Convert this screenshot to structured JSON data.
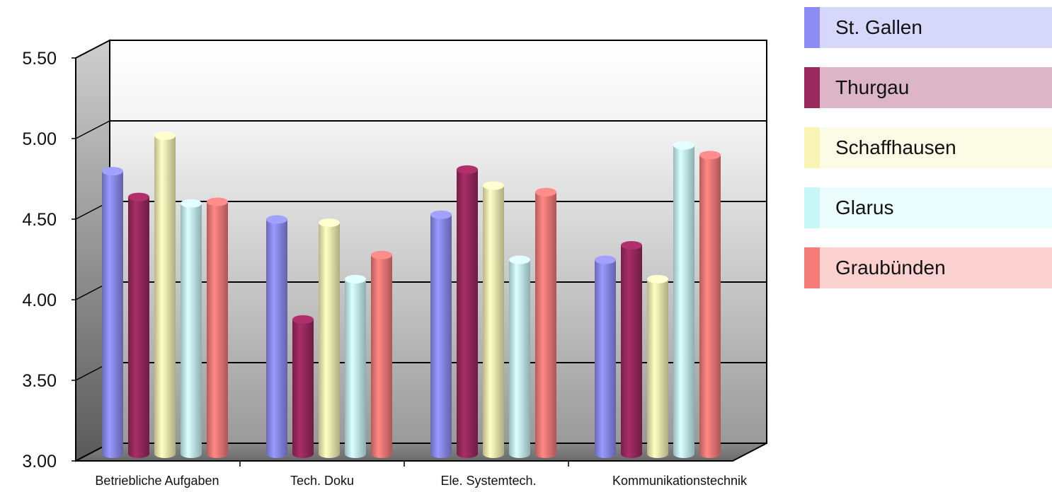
{
  "chart_data": {
    "type": "bar",
    "categories": [
      "Betriebliche Aufgaben",
      "Tech. Doku",
      "Ele. Systemtech.",
      "Kommunikationstechnik"
    ],
    "series": [
      {
        "name": "St. Gallen",
        "color": "#8c8cf4",
        "values": [
          4.78,
          4.48,
          4.51,
          4.23
        ]
      },
      {
        "name": "Thurgau",
        "color": "#9a2a5e",
        "values": [
          4.62,
          3.86,
          4.79,
          4.32
        ]
      },
      {
        "name": "Schaffhausen",
        "color": "#f7f4b4",
        "values": [
          5.0,
          4.46,
          4.69,
          4.11
        ]
      },
      {
        "name": "Glarus",
        "color": "#c6f8f8",
        "values": [
          4.58,
          4.11,
          4.23,
          4.94
        ]
      },
      {
        "name": "Graubünden",
        "color": "#f47b78",
        "values": [
          4.59,
          4.26,
          4.65,
          4.88
        ]
      }
    ],
    "ylim": [
      3.0,
      5.5
    ],
    "yticks": [
      "3.00",
      "3.50",
      "4.00",
      "4.50",
      "5.00",
      "5.50"
    ],
    "legend_position": "right",
    "grid": true
  }
}
